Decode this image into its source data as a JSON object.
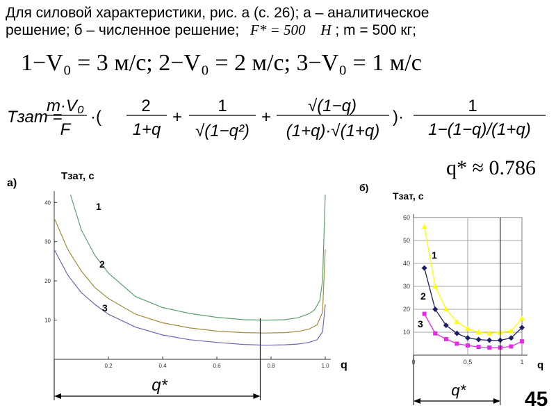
{
  "header": {
    "line1": "Для силовой характеристики, рис. а (с. 26); а – аналитическое",
    "line2_prefix": "решение; б – численное решение;",
    "force_symbol": "F* = 500",
    "force_unit": "Н",
    "line2_suffix": "; m = 500 кг;"
  },
  "velocities": "1−V₀ = 3  м/с;  2−V₀ = 2  м/с;  3−V₀ = 1  м/с",
  "formula": {
    "lhs": "Tзат =",
    "coef_num": "m·V₀",
    "coef_den": "F",
    "dot": "·(",
    "term1_num": "2",
    "term1_den": "1+q",
    "term2_num": "1",
    "term2_den": "√(1−q²)",
    "term3_num": "√(1−q)",
    "term3_den": "(1+q)·√(1+q)",
    "close": ")·",
    "last_num": "1",
    "last_den": "1−(1−q)/(1+q)"
  },
  "q_star_value": "q* ≈ 0.786",
  "slide_number": "45",
  "chart_data": [
    {
      "type": "line",
      "panel_label": "а)",
      "ylabel": "Tзат, с",
      "xlabel": "q",
      "xlim": [
        0,
        1
      ],
      "ylim": [
        0,
        42
      ],
      "x_ticks": [
        "0.2",
        "0.4",
        "0.6",
        "0.8",
        "1.0"
      ],
      "y_ticks": [
        "10",
        "20",
        "30",
        "40"
      ],
      "grid": true,
      "optimum_label": "q*",
      "optimum_x": 0.76,
      "series": [
        {
          "name": "1",
          "color": "#5aa06e",
          "x": [
            0.06,
            0.1,
            0.15,
            0.2,
            0.3,
            0.4,
            0.5,
            0.6,
            0.7,
            0.78,
            0.85,
            0.9,
            0.94,
            0.96,
            0.98,
            0.99,
            1.0
          ],
          "values": [
            42,
            33,
            26.5,
            22,
            16,
            13.2,
            11.7,
            10.7,
            10.1,
            10.0,
            10.1,
            10.6,
            11.6,
            12.6,
            15,
            20,
            42
          ]
        },
        {
          "name": "2",
          "color": "#a08c3c",
          "x": [
            0.0,
            0.05,
            0.1,
            0.15,
            0.2,
            0.3,
            0.4,
            0.5,
            0.6,
            0.7,
            0.78,
            0.85,
            0.9,
            0.94,
            0.97,
            0.99,
            1.0
          ],
          "values": [
            36,
            28,
            22.5,
            18.3,
            15.5,
            11.5,
            9.3,
            8.0,
            7.2,
            6.8,
            6.7,
            6.8,
            7.1,
            7.7,
            8.8,
            12,
            28
          ]
        },
        {
          "name": "3",
          "color": "#6e64b4",
          "x": [
            0.0,
            0.05,
            0.1,
            0.15,
            0.2,
            0.3,
            0.4,
            0.5,
            0.6,
            0.7,
            0.78,
            0.85,
            0.9,
            0.94,
            0.97,
            0.99,
            1.0
          ],
          "values": [
            28,
            21.5,
            17,
            14,
            11.5,
            8.2,
            6.2,
            5.0,
            4.3,
            3.8,
            3.6,
            3.7,
            3.9,
            4.3,
            5.0,
            7,
            14
          ]
        }
      ]
    },
    {
      "type": "line",
      "panel_label": "б)",
      "ylabel": "Tзат, с",
      "xlabel": "q",
      "xlim": [
        0,
        1
      ],
      "ylim": [
        0,
        60
      ],
      "x_ticks": [
        "0",
        "0,5",
        "1"
      ],
      "y_ticks": [
        "10",
        "20",
        "30",
        "40",
        "50",
        "60"
      ],
      "grid": true,
      "optimum_label": "q*",
      "optimum_x": 0.8,
      "series": [
        {
          "name": "1",
          "color": "#ffff00",
          "marker": "triangle",
          "x": [
            0.1,
            0.2,
            0.3,
            0.4,
            0.5,
            0.6,
            0.7,
            0.8,
            0.9,
            1.0
          ],
          "values": [
            56,
            30,
            20,
            14.5,
            11.5,
            10,
            9.5,
            10,
            10.5,
            16
          ]
        },
        {
          "name": "2",
          "color": "#1e1e64",
          "marker": "diamond",
          "x": [
            0.1,
            0.2,
            0.3,
            0.4,
            0.5,
            0.6,
            0.7,
            0.8,
            0.9,
            1.0
          ],
          "values": [
            38,
            20,
            13,
            9.5,
            7.5,
            6.8,
            6.5,
            6.5,
            7.5,
            12
          ]
        },
        {
          "name": "3",
          "color": "#e628e6",
          "marker": "square",
          "x": [
            0.1,
            0.2,
            0.3,
            0.4,
            0.5,
            0.6,
            0.7,
            0.8,
            0.9,
            1.0
          ],
          "values": [
            18,
            9.5,
            7,
            5,
            4.2,
            3.6,
            3.3,
            3.3,
            3.8,
            6
          ]
        }
      ]
    }
  ]
}
